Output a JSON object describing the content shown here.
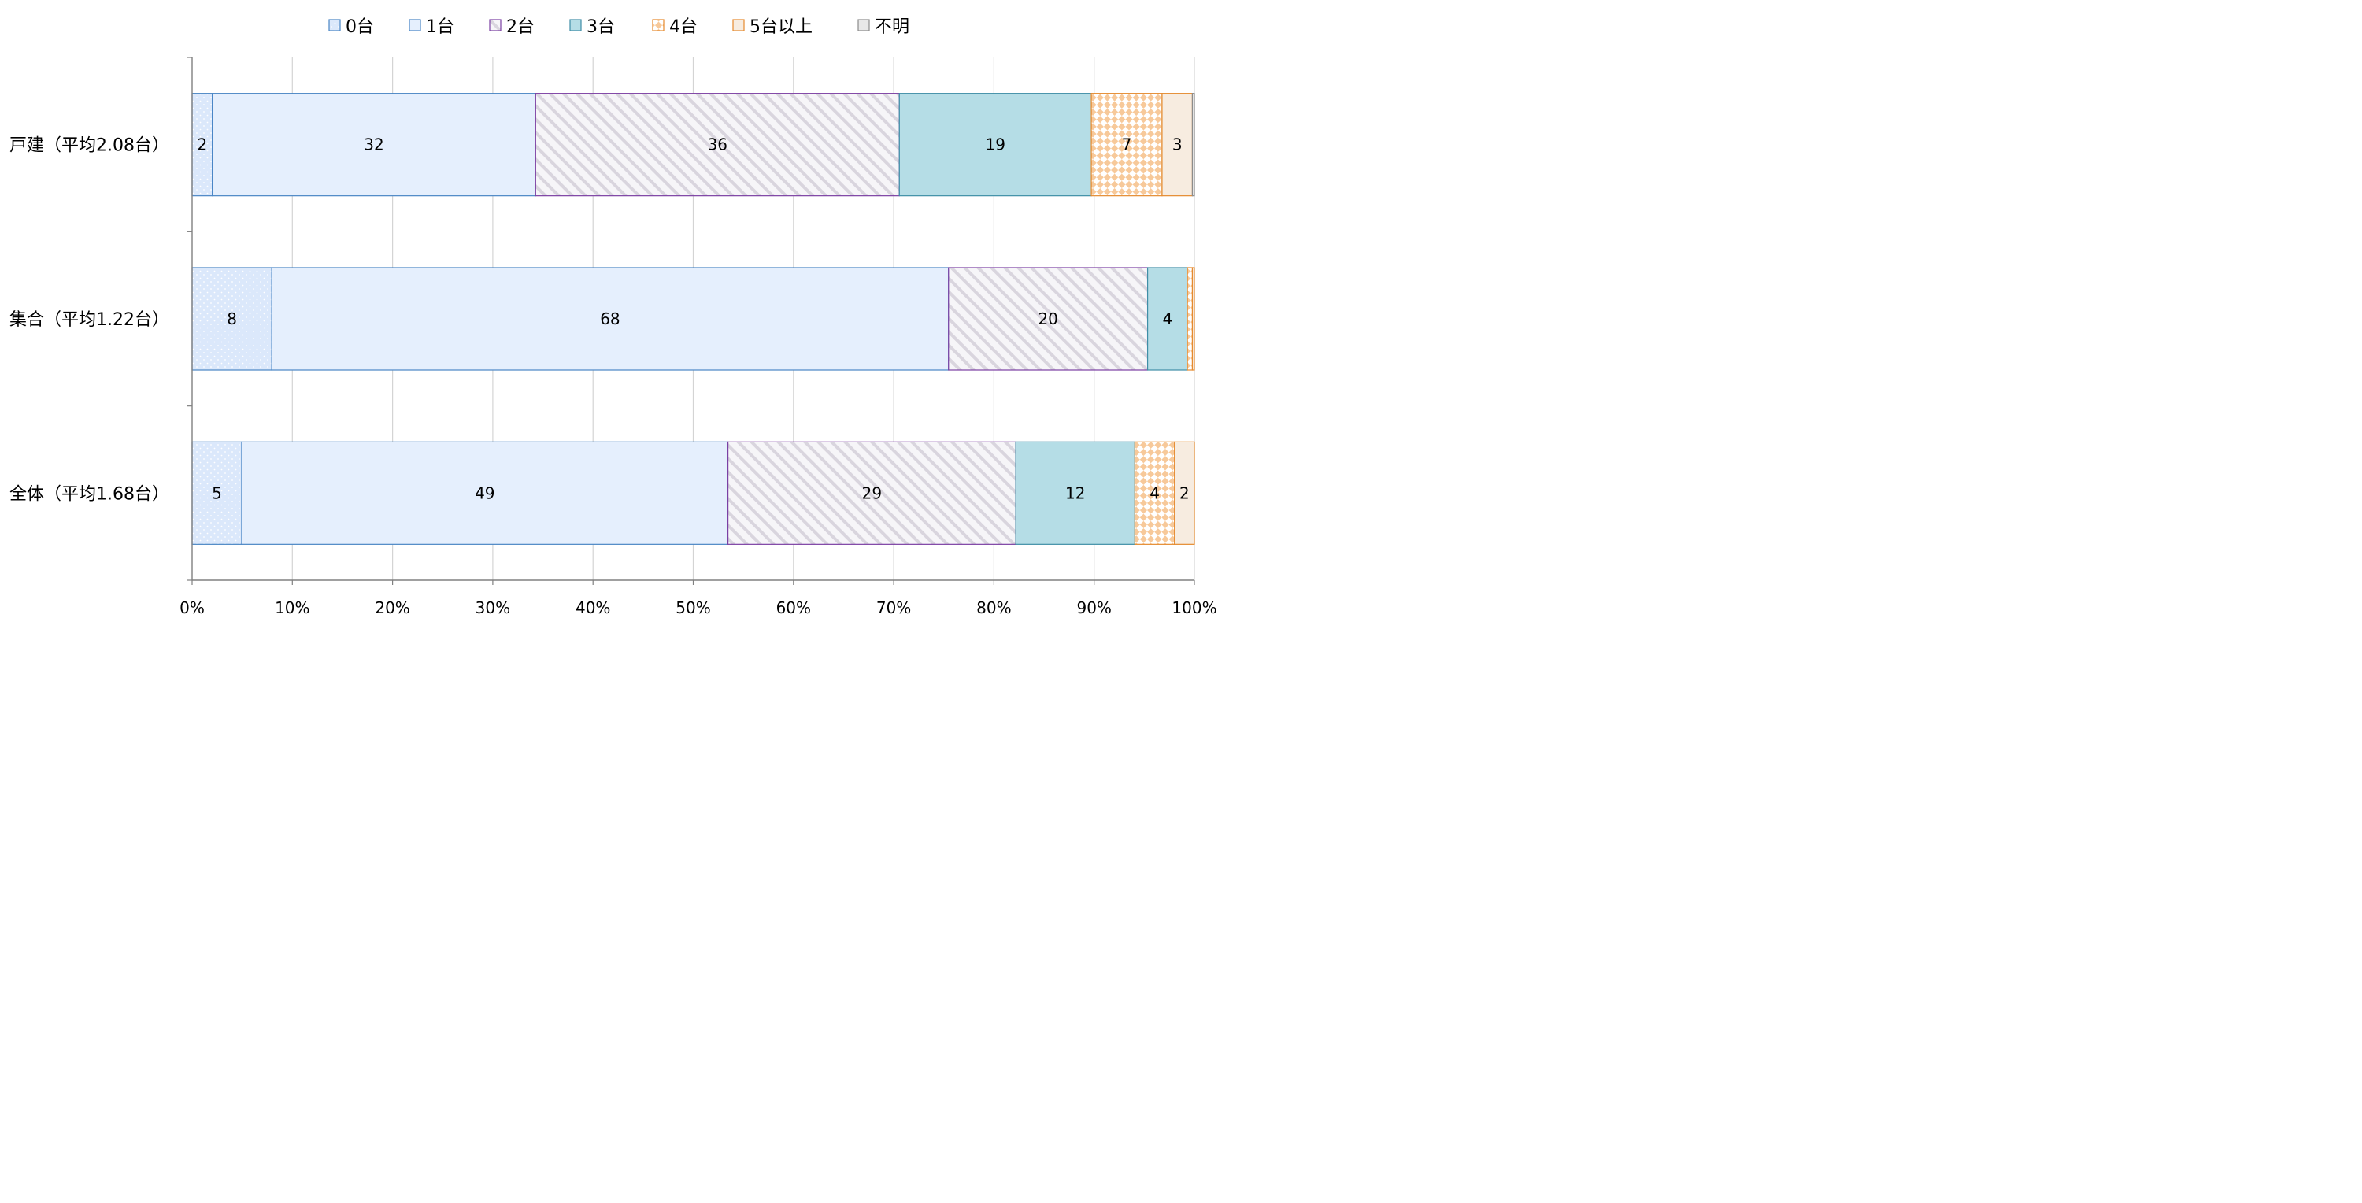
{
  "chart_data": {
    "type": "bar",
    "orientation": "horizontal",
    "stacked": "percent",
    "categories": [
      "戸建（平均2.08台）",
      "集合（平均1.22台）",
      "全体（平均1.68台）"
    ],
    "series": [
      {
        "name": "0台",
        "values": [
          2,
          8,
          5
        ],
        "labels": [
          "2",
          "8",
          "5"
        ],
        "color": "#dbe8fb",
        "stroke": "#4a86c5",
        "pattern": "dots"
      },
      {
        "name": "1台",
        "values": [
          32,
          68,
          49
        ],
        "labels": [
          "32",
          "68",
          "49"
        ],
        "color": "#e5effd",
        "stroke": "#4a86c5",
        "pattern": "solid"
      },
      {
        "name": "2台",
        "values": [
          36,
          20,
          29
        ],
        "labels": [
          "36",
          "20",
          "29"
        ],
        "color": "#f1eff4",
        "stroke": "#7b3fa3",
        "pattern": "diagonal"
      },
      {
        "name": "3台",
        "values": [
          19,
          4,
          12
        ],
        "labels": [
          "19",
          "4",
          "12"
        ],
        "color": "#b5dde6",
        "stroke": "#3f8ea6",
        "pattern": "solid"
      },
      {
        "name": "4台",
        "values": [
          7,
          0.5,
          4
        ],
        "labels": [
          "7",
          "",
          "4"
        ],
        "color": "#f7c99a",
        "stroke": "#e58a2e",
        "pattern": "checker"
      },
      {
        "name": "5台以上",
        "values": [
          3,
          0.2,
          2
        ],
        "labels": [
          "3",
          "",
          "2"
        ],
        "color": "#f7ece0",
        "stroke": "#e58a2e",
        "pattern": "solid"
      },
      {
        "name": "不明",
        "values": [
          0.2,
          0,
          0
        ],
        "labels": [
          "",
          "",
          ""
        ],
        "color": "#e8e8e8",
        "stroke": "#8c8c8c",
        "pattern": "solid"
      }
    ],
    "x_ticks": [
      "0%",
      "10%",
      "20%",
      "30%",
      "40%",
      "50%",
      "60%",
      "70%",
      "80%",
      "90%",
      "100%"
    ],
    "xlim": [
      0,
      100
    ],
    "grid": "vertical",
    "legend_position": "top"
  }
}
